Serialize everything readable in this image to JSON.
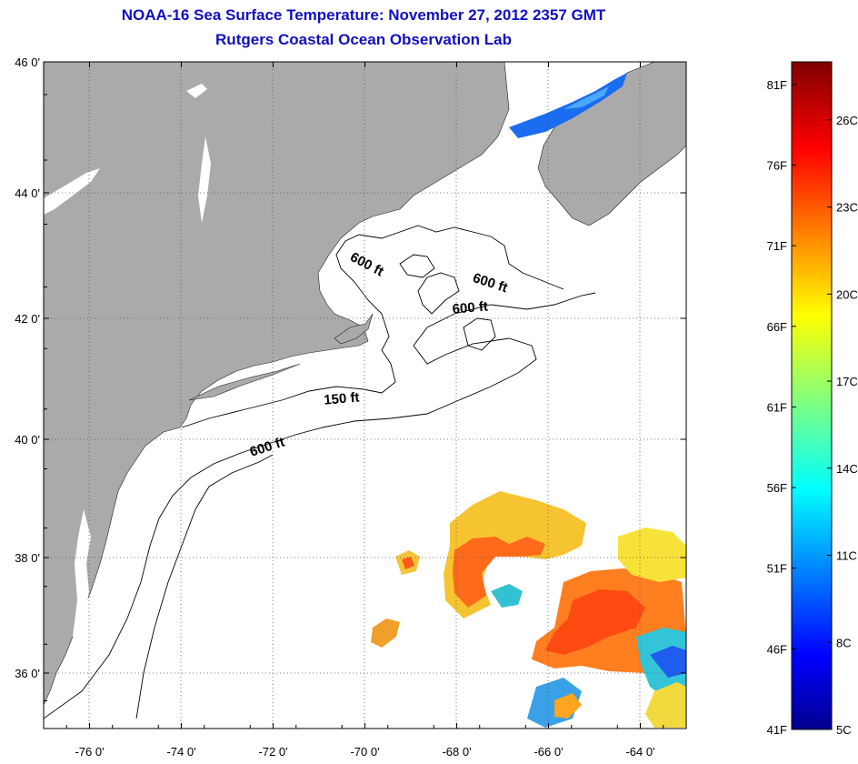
{
  "header": {
    "title": "NOAA-16 Sea Surface Temperature:  November 27, 2012 2357 GMT",
    "subtitle": "Rutgers Coastal Ocean Observation Lab"
  },
  "map": {
    "lon_range": [
      -77,
      -63
    ],
    "lat_range": [
      35,
      46
    ],
    "lon_ticks": [
      {
        "value": -76,
        "label": "-76 0'"
      },
      {
        "value": -74,
        "label": "-74 0'"
      },
      {
        "value": -72,
        "label": "-72 0'"
      },
      {
        "value": -70,
        "label": "-70 0'"
      },
      {
        "value": -68,
        "label": "-68 0'"
      },
      {
        "value": -66,
        "label": "-66 0'"
      },
      {
        "value": -64,
        "label": "-64 0'"
      }
    ],
    "lat_ticks": [
      {
        "value": 46,
        "label": "46 0'"
      },
      {
        "value": 44,
        "label": "44 0'"
      },
      {
        "value": 42,
        "label": "42 0'"
      },
      {
        "value": 40,
        "label": "40 0'"
      },
      {
        "value": 38,
        "label": "38 0'"
      },
      {
        "value": 36,
        "label": "36 0'"
      }
    ],
    "contour_labels": [
      {
        "text": "600 ft",
        "lon": -70.0,
        "lat": 42.8
      },
      {
        "text": "600 ft",
        "lon": -67.3,
        "lat": 42.5
      },
      {
        "text": "600 ft",
        "lon": -67.7,
        "lat": 42.1
      },
      {
        "text": "150 ft",
        "lon": -70.5,
        "lat": 40.6
      },
      {
        "text": "600 ft",
        "lon": -72.1,
        "lat": 39.8
      }
    ],
    "land_color": "#aaaaaa",
    "grid": "dotted"
  },
  "colorbar": {
    "min_c": 5,
    "max_c": 28,
    "fahrenheit_labels": [
      {
        "label": "81F",
        "temp_f": 81
      },
      {
        "label": "76F",
        "temp_f": 76
      },
      {
        "label": "71F",
        "temp_f": 71
      },
      {
        "label": "66F",
        "temp_f": 66
      },
      {
        "label": "61F",
        "temp_f": 61
      },
      {
        "label": "56F",
        "temp_f": 56
      },
      {
        "label": "51F",
        "temp_f": 51
      },
      {
        "label": "46F",
        "temp_f": 46
      },
      {
        "label": "41F",
        "temp_f": 41
      }
    ],
    "celsius_labels": [
      {
        "label": "26C",
        "temp_c": 26
      },
      {
        "label": "23C",
        "temp_c": 23
      },
      {
        "label": "20C",
        "temp_c": 20
      },
      {
        "label": "17C",
        "temp_c": 17
      },
      {
        "label": "14C",
        "temp_c": 14
      },
      {
        "label": "11C",
        "temp_c": 11
      },
      {
        "label": "8C",
        "temp_c": 8
      },
      {
        "label": "5C",
        "temp_c": 5
      }
    ]
  }
}
